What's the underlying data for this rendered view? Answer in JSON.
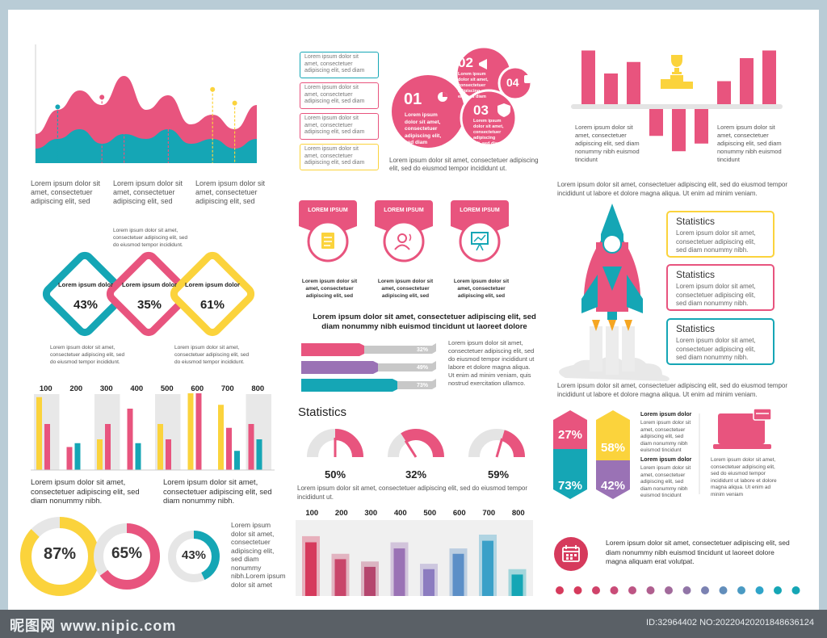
{
  "colors": {
    "pink": "#e8547e",
    "teal": "#15a6b5",
    "yellow": "#fbd33c",
    "purple": "#9a72b5",
    "gray": "#e4e4e4",
    "blue": "#5c8fc7",
    "crimson": "#d63a5c"
  },
  "chart_data": [
    {
      "type": "area",
      "series": [
        {
          "values": [
            30,
            55,
            75,
            60,
            90,
            55,
            70,
            40,
            50,
            35,
            60
          ]
        },
        {
          "values": [
            15,
            25,
            35,
            20,
            30,
            25,
            35,
            20,
            25,
            15,
            25
          ]
        }
      ],
      "markers": [
        {
          "x": 1,
          "v": 58,
          "color": "teal"
        },
        {
          "x": 3,
          "v": 68,
          "color": "pink"
        },
        {
          "x": 4,
          "v": 82,
          "color": "pink"
        },
        {
          "x": 6,
          "v": 60,
          "color": "pink"
        },
        {
          "x": 8,
          "v": 76,
          "color": "yellow"
        },
        {
          "x": 9,
          "v": 62,
          "color": "yellow"
        }
      ]
    },
    {
      "type": "bar",
      "values": [
        70,
        40,
        55,
        -35,
        -55,
        -45,
        30,
        60,
        70
      ],
      "colors": [
        "pink",
        "pink",
        "pink",
        "pink",
        "pink",
        "pink",
        "pink",
        "pink",
        "pink"
      ]
    },
    {
      "type": "bar",
      "categories": [
        "100",
        "200",
        "300",
        "400",
        "500",
        "600",
        "700",
        "800"
      ],
      "series": [
        {
          "color": "yellow",
          "values": [
            95,
            0,
            40,
            0,
            60,
            100,
            85,
            0
          ]
        },
        {
          "color": "pink",
          "values": [
            60,
            30,
            60,
            80,
            40,
            100,
            55,
            60
          ]
        },
        {
          "color": "teal",
          "values": [
            0,
            35,
            0,
            35,
            0,
            0,
            25,
            40
          ]
        }
      ],
      "shade": [
        1,
        0,
        1,
        0,
        1,
        0,
        0,
        1
      ]
    },
    {
      "type": "bar",
      "categories": [
        "100",
        "200",
        "300",
        "400",
        "500",
        "600",
        "700",
        "800"
      ],
      "values": [
        70,
        48,
        38,
        62,
        35,
        55,
        72,
        28
      ],
      "bg": [
        78,
        55,
        45,
        70,
        42,
        62,
        80,
        35
      ],
      "colors": [
        "#d63a5c",
        "#c9456a",
        "#b5466e",
        "#9a72b5",
        "#8c7cc0",
        "#5c8fc7",
        "#3aa0c8",
        "#15a6b5"
      ]
    },
    {
      "type": "pie",
      "values": [
        87,
        65,
        43
      ],
      "labels": [
        "87%",
        "65%",
        "43%"
      ],
      "colors": [
        "yellow",
        "pink",
        "teal"
      ]
    },
    {
      "type": "pie",
      "values": [
        50,
        32,
        59
      ],
      "labels": [
        "50%",
        "32%",
        "59%"
      ]
    },
    {
      "type": "bar",
      "values": [
        32,
        49,
        73
      ],
      "labels": [
        "32%",
        "49%",
        "73%"
      ],
      "colors": [
        "pink",
        "purple",
        "teal"
      ]
    }
  ],
  "lorem": {
    "short3": "Lorem ipsum dolor sit amet, consectetuer adipiscing elit, sed",
    "mini": "Lorem ipsum dolor sit amet, consectetuer adipiscing elit, sed do eiusmod tempor incididunt.",
    "mid": "Lorem ipsum dolor sit amet, consectetuer adipiscing elit, sed do eiusmod tempor incididunt ut.",
    "long": "Lorem ipsum dolor sit amet, consectetuer adipiscing elit, sed do eiusmod tempor incididunt ut labore et dolore magna aliqua. Ut enim ad minim veniam.",
    "four": "Lorem ipsum dolor sit amet, consectetuer adipiscing elit, sed diam nonummy nibh euismod tincidunt",
    "bar_caption": "Lorem ipsum dolor sit amet, consectetuer adipiscing elit, sed diam nonummy nibh.",
    "donut_caption": "Lorem ipsum dolor sit amet, consectetuer adipiscing elit, sed diam nonummy nibh.Lorem ipsum dolor sit amet",
    "progress_caption": "Lorem ipsum dolor sit amet, consectetuer adipiscing elit, sed do eiusmod tempor incididunt ut labore et dolore magna aliqua. Ut enim ad minim veniam, quis nostrud exercitation ullamco.",
    "headline": "Lorem ipsum dolor sit amet, consectetuer adipiscing elit, sed diam nonummy nibh euismod tincidunt ut laoreet dolore",
    "calendar": "Lorem ipsum dolor sit amet, consectetuer adipiscing elit, sed diam nonummy nibh euismod tincidunt ut laoreet dolore magna aliquam erat volutpat.",
    "stat_desc": "Lorem ipsum dolor sit amet, consectetuer adipiscing elit, sed diam nonummy nibh.",
    "small_bold": "Lorem ipsum dolor",
    "step": "Lorem ipsum dolor sit amet, consectetuer adipiscing elit, sed diam",
    "info_box": "Lorem ipsum dolor sit amet, consectetuer adipiscing elit, sed diam",
    "tab_desc": "Lorem ipsum dolor sit amet, consectetuer adipiscing elit, sed",
    "laptop": "Lorem ipsum dolor sit amet, consectetuer adipiscing elit, sed do eiusmod tempor incididunt ut labore et dolore magna aliqua. Ut enim ad minim veniam"
  },
  "diamonds": [
    {
      "label": "Lorem ipsum dolor",
      "value": "43%"
    },
    {
      "label": "Lorem ipsum dolor",
      "value": "35%"
    },
    {
      "label": "Lorem ipsum dolor",
      "value": "61%"
    }
  ],
  "steps": [
    {
      "num": "01"
    },
    {
      "num": "02"
    },
    {
      "num": "03"
    },
    {
      "num": "04"
    }
  ],
  "tabs": [
    {
      "title": "LOREM IPSUM"
    },
    {
      "title": "LOREM IPSUM"
    },
    {
      "title": "LOREM IPSUM"
    }
  ],
  "statistics": {
    "title": "Statistics"
  },
  "stat_boxes": [
    {
      "title": "Statistics"
    },
    {
      "title": "Statistics"
    },
    {
      "title": "Statistics"
    }
  ],
  "hexes": [
    {
      "value": "27%"
    },
    {
      "value": "58%"
    },
    {
      "value": "73%"
    },
    {
      "value": "42%"
    }
  ],
  "footer": {
    "watermark": "昵图网 www.nipic.com",
    "id": "ID:32964402 NO:20220420201848636124"
  }
}
